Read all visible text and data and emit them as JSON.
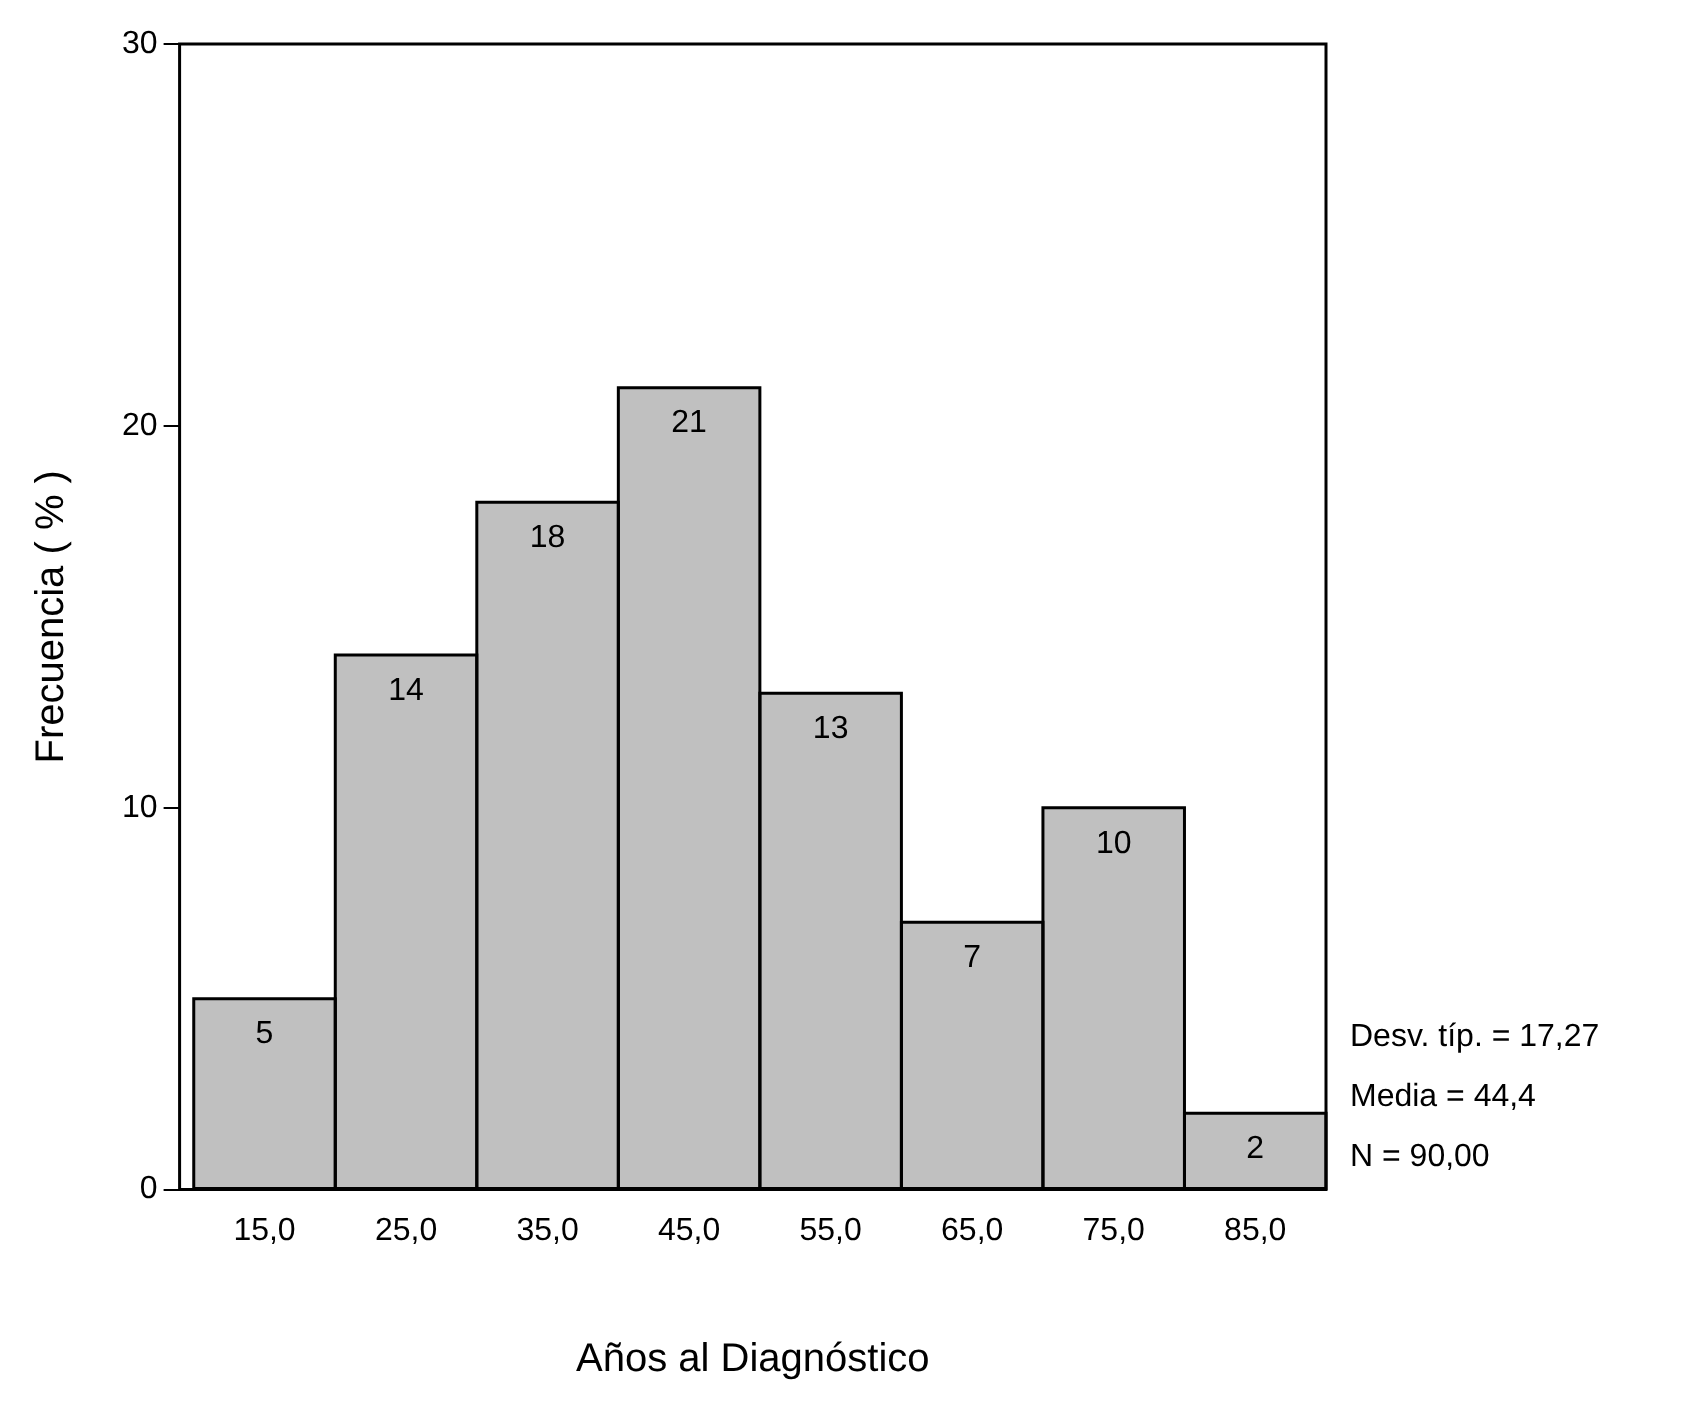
{
  "chart_data": {
    "type": "histogram",
    "xlabel": "Años al Diagnóstico",
    "ylabel": "Frecuencia ( % )",
    "bins": [
      10,
      20,
      30,
      40,
      50,
      60,
      70,
      80,
      90
    ],
    "values": [
      5,
      14,
      18,
      21,
      13,
      7,
      10,
      2
    ],
    "color": "#c0c0c0",
    "xlim": [
      9,
      90
    ],
    "xticks": [
      {
        "value": 15,
        "label": "15,0"
      },
      {
        "value": 25,
        "label": "25,0"
      },
      {
        "value": 35,
        "label": "35,0"
      },
      {
        "value": 45,
        "label": "45,0"
      },
      {
        "value": 55,
        "label": "55,0"
      },
      {
        "value": 65,
        "label": "65,0"
      },
      {
        "value": 75,
        "label": "75,0"
      },
      {
        "value": 85,
        "label": "85,0"
      }
    ],
    "ylim": [
      0,
      30
    ],
    "yticks": [
      0,
      10,
      20,
      30
    ],
    "grid": false,
    "legend": false,
    "data_labels": true,
    "annotations": [
      "Desv. típ. = 17,27",
      "Media = 44,4",
      "N = 90,00"
    ]
  }
}
